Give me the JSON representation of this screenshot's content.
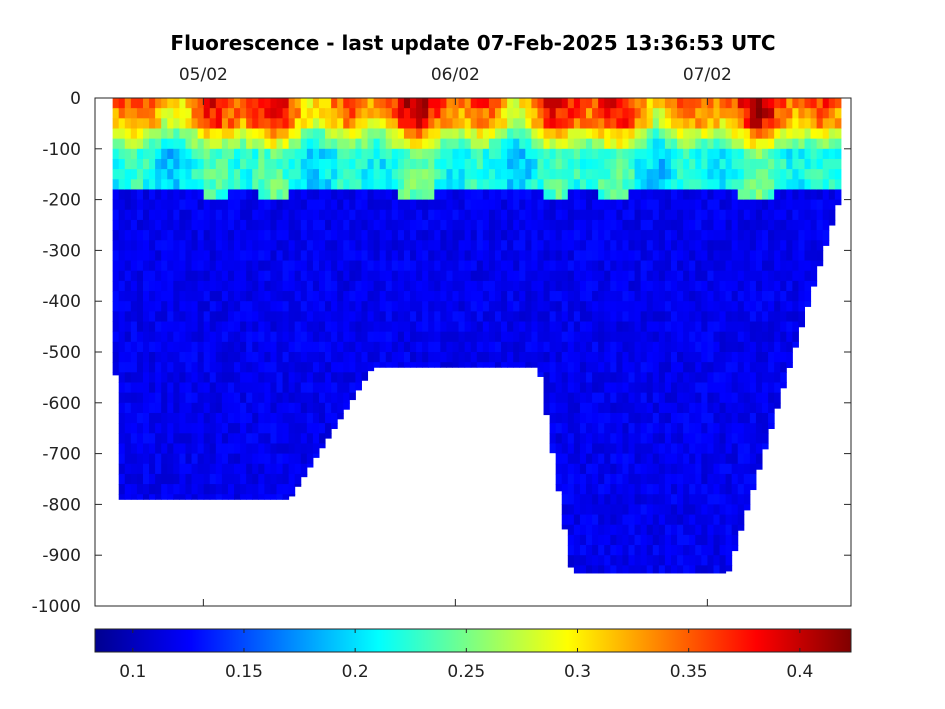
{
  "chart_data": {
    "type": "heatmap",
    "title": "Fluorescence - last update 07-Feb-2025 13:36:53 UTC",
    "xlabel": "",
    "ylabel": "",
    "x_ticks": [
      "05/02",
      "06/02",
      "07/02"
    ],
    "x_tick_positions_days": [
      0,
      1,
      2
    ],
    "xlim_days": [
      -0.43,
      2.57
    ],
    "y_ticks": [
      0,
      -100,
      -200,
      -300,
      -400,
      -500,
      -600,
      -700,
      -800,
      -900,
      -1000
    ],
    "ylim": [
      -1000,
      0
    ],
    "colormap": "jet",
    "colorbar": {
      "orientation": "horizontal",
      "ticks": [
        "0.1",
        "0.15",
        "0.2",
        "0.25",
        "0.3",
        "0.35",
        "0.4"
      ],
      "range": [
        0.083,
        0.423
      ]
    },
    "grid": false,
    "data_extent": {
      "start_day": -0.36,
      "end_day": 2.53,
      "deep_profile_bottom_depths_m": [
        {
          "day": -0.35,
          "depth": -790
        },
        {
          "day": 0.33,
          "depth": -790
        },
        {
          "day": 0.66,
          "depth": -530
        },
        {
          "day": 1.32,
          "depth": -530
        },
        {
          "day": 1.45,
          "depth": -935
        },
        {
          "day": 2.07,
          "depth": -935
        },
        {
          "day": 2.53,
          "depth": -170
        }
      ]
    },
    "surface_layer": {
      "description_values": "high fluorescence (0.3-0.42) in top ~50 m, mid values (0.2-0.28) near 100-180 m, background ~0.12 below 200 m",
      "surface_max": 0.42,
      "subsurface_mid": 0.22,
      "deep_background": 0.12
    }
  }
}
